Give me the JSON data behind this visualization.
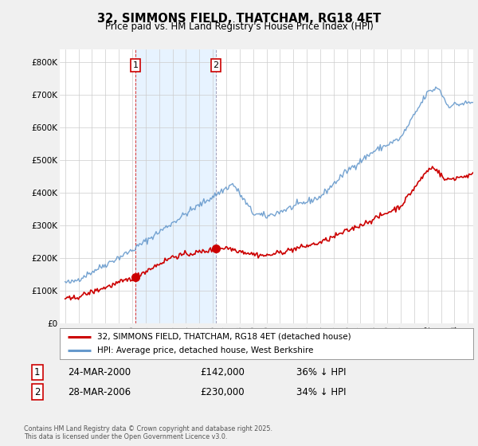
{
  "title": "32, SIMMONS FIELD, THATCHAM, RG18 4ET",
  "subtitle": "Price paid vs. HM Land Registry's House Price Index (HPI)",
  "legend_label_red": "32, SIMMONS FIELD, THATCHAM, RG18 4ET (detached house)",
  "legend_label_blue": "HPI: Average price, detached house, West Berkshire",
  "footnote": "Contains HM Land Registry data © Crown copyright and database right 2025.\nThis data is licensed under the Open Government Licence v3.0.",
  "point1_date": "24-MAR-2000",
  "point1_price": "£142,000",
  "point1_hpi": "36% ↓ HPI",
  "point1_x": 2000.23,
  "point1_y": 142000,
  "point2_date": "28-MAR-2006",
  "point2_price": "£230,000",
  "point2_hpi": "34% ↓ HPI",
  "point2_x": 2006.23,
  "point2_y": 230000,
  "ylim": [
    0,
    840000
  ],
  "yticks": [
    0,
    100000,
    200000,
    300000,
    400000,
    500000,
    600000,
    700000,
    800000
  ],
  "ytick_labels": [
    "£0",
    "£100K",
    "£200K",
    "£300K",
    "£400K",
    "£500K",
    "£600K",
    "£700K",
    "£800K"
  ],
  "xlim_start": 1994.6,
  "xlim_end": 2025.4,
  "red_color": "#cc0000",
  "blue_color": "#6699cc",
  "shade_color": "#ddeeff",
  "background_color": "#f0f0f0",
  "plot_bg_color": "#ffffff",
  "grid_color": "#cccccc"
}
